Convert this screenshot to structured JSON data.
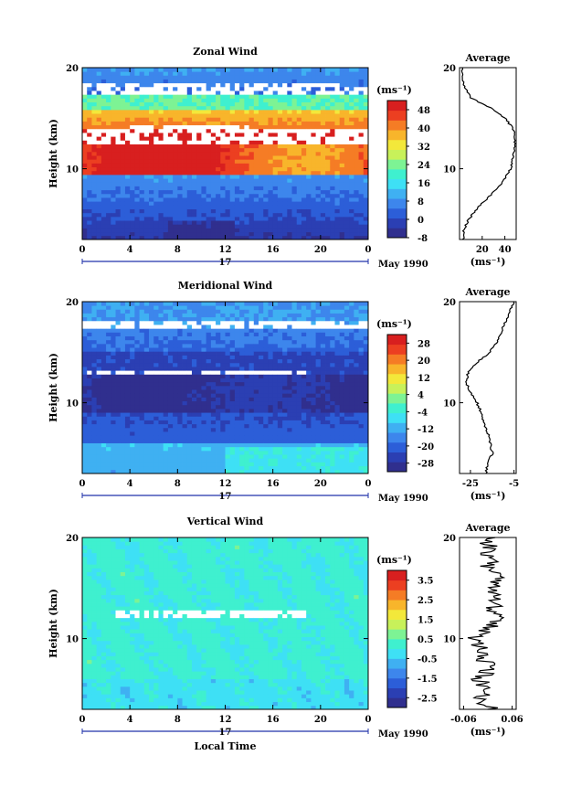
{
  "figure": {
    "x_axis_label": "Local Time",
    "y_axis_label": "Height (km)",
    "date_label": "May 1990",
    "day_label": "17",
    "unit_label": "(ms⁻¹)",
    "average_title": "Average"
  },
  "chart_data": [
    {
      "type": "heatmap",
      "title": "Zonal Wind",
      "xlabel": "",
      "ylabel": "Height (km)",
      "xlim": [
        0,
        24
      ],
      "ylim": [
        3,
        20
      ],
      "x_ticks": [
        "0",
        "4",
        "8",
        "12",
        "16",
        "20",
        "0"
      ],
      "y_ticks": [
        "10",
        "20"
      ],
      "colorbar": {
        "label": "(ms⁻¹)",
        "ticks": [
          "-8",
          "0",
          "8",
          "16",
          "24",
          "32",
          "40",
          "48"
        ],
        "range": [
          -8,
          52
        ]
      },
      "features": [
        {
          "height": 10.0,
          "value": 50
        },
        {
          "height": 13.0,
          "value": 60
        },
        {
          "height": 15.0,
          "value": 44
        },
        {
          "height": 18.0,
          "value": 10
        }
      ],
      "average_profile": {
        "title": "Average",
        "x_ticks": [
          "20",
          "40"
        ],
        "xlim": [
          0,
          50
        ],
        "xlabel": "(ms⁻¹)",
        "y_ticks": [
          "10",
          "20"
        ],
        "height": [
          3,
          4,
          5,
          6,
          7,
          8,
          9,
          10,
          11,
          12,
          13,
          14,
          15,
          16,
          17,
          18,
          19,
          20
        ],
        "values": [
          3,
          4,
          8,
          15,
          24,
          33,
          40,
          45,
          47,
          48,
          49,
          47,
          40,
          28,
          10,
          5,
          2,
          2
        ]
      }
    },
    {
      "type": "heatmap",
      "title": "Meridional Wind",
      "xlabel": "",
      "ylabel": "Height (km)",
      "xlim": [
        0,
        24
      ],
      "ylim": [
        3,
        20
      ],
      "x_ticks": [
        "0",
        "4",
        "8",
        "12",
        "16",
        "20",
        "0"
      ],
      "y_ticks": [
        "10",
        "20"
      ],
      "colorbar": {
        "label": "(ms⁻¹)",
        "ticks": [
          "-28",
          "-20",
          "-12",
          "-4",
          "4",
          "12",
          "20",
          "28"
        ],
        "range": [
          -32,
          32
        ]
      },
      "features": [
        {
          "height": 11.0,
          "value": -30
        },
        {
          "height": 14.0,
          "value": -25
        },
        {
          "height": 18.0,
          "value": -18
        },
        {
          "height": 5.0,
          "value": -10
        }
      ],
      "average_profile": {
        "title": "Average",
        "x_ticks": [
          "-25",
          "-5"
        ],
        "xlim": [
          -30,
          -4
        ],
        "xlabel": "(ms⁻¹)",
        "y_ticks": [
          "10",
          "20"
        ],
        "height": [
          3,
          4,
          5,
          6,
          7,
          8,
          9,
          10,
          11,
          12,
          13,
          14,
          15,
          16,
          17,
          18,
          19,
          20
        ],
        "values": [
          -18,
          -17,
          -15,
          -16,
          -17,
          -19,
          -20,
          -22,
          -25,
          -27,
          -26,
          -22,
          -16,
          -13,
          -11,
          -9,
          -7,
          -5
        ]
      }
    },
    {
      "type": "heatmap",
      "title": "Vertical Wind",
      "xlabel": "Local Time",
      "ylabel": "Height (km)",
      "xlim": [
        0,
        24
      ],
      "ylim": [
        3,
        20
      ],
      "x_ticks": [
        "0",
        "4",
        "8",
        "12",
        "16",
        "20",
        "0"
      ],
      "y_ticks": [
        "10",
        "20"
      ],
      "colorbar": {
        "label": "(ms⁻¹)",
        "ticks": [
          "-2.5",
          "-1.5",
          "-0.5",
          "0.5",
          "1.5",
          "2.5",
          "3.5"
        ],
        "range": [
          -3,
          4
        ]
      },
      "features": [
        {
          "height": 12.5,
          "value": 0.0
        },
        {
          "height": 8.0,
          "value": -0.3
        }
      ],
      "average_profile": {
        "title": "Average",
        "x_ticks": [
          "-0.06",
          "0.06"
        ],
        "xlim": [
          -0.07,
          0.07
        ],
        "xlabel": "(ms⁻¹)",
        "y_ticks": [
          "10",
          "20"
        ],
        "height": [
          3,
          4,
          5,
          6,
          7,
          8,
          9,
          10,
          11,
          12,
          13,
          14,
          15,
          16,
          17,
          18,
          19,
          20
        ],
        "values": [
          0.01,
          -0.02,
          0.0,
          -0.03,
          0.01,
          -0.02,
          -0.01,
          -0.03,
          0.0,
          0.02,
          0.01,
          0.03,
          0.01,
          0.02,
          0.0,
          0.01,
          0.0,
          0.01
        ]
      }
    }
  ]
}
